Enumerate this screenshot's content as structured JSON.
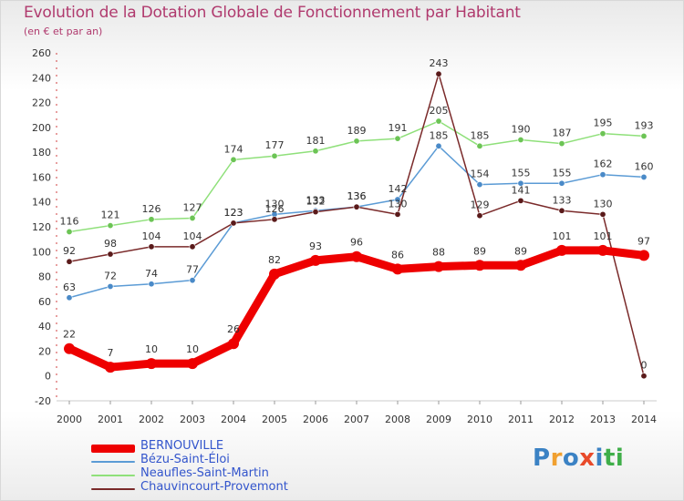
{
  "page": {
    "title": "Evolution de la Dotation Globale de Fonctionnement par Habitant",
    "subtitle": "(en € et par an)"
  },
  "logo": {
    "text": "Proxiti",
    "colors": [
      "#3b82c4",
      "#f0a030",
      "#3b82c4",
      "#e84a2a",
      "#3b82c4",
      "#3fae49",
      "#3fae49"
    ]
  },
  "chart_data": {
    "type": "line",
    "title": "Evolution de la Dotation Globale de Fonctionnement par Habitant",
    "ylabel": "(en € et par an)",
    "xlabel": "",
    "ylim": [
      -20,
      260
    ],
    "yticks": [
      -20,
      0,
      20,
      40,
      60,
      80,
      100,
      120,
      140,
      160,
      180,
      200,
      220,
      240,
      260
    ],
    "grid": false,
    "legend_position": "bottom-left",
    "categories": [
      "2000",
      "2001",
      "2002",
      "2003",
      "2004",
      "2005",
      "2006",
      "2007",
      "2008",
      "2009",
      "2010",
      "2011",
      "2012",
      "2013",
      "2014"
    ],
    "series": [
      {
        "name": "Neaufles-Saint-Martin",
        "color": "#8fe07a",
        "marker": "#6cc455",
        "values": [
          116,
          121,
          126,
          127,
          174,
          177,
          181,
          189,
          191,
          205,
          185,
          190,
          187,
          195,
          193
        ],
        "labels": [
          "116",
          "121",
          "126",
          "127",
          "174",
          "177",
          "181",
          "189",
          "191",
          "205",
          "185",
          "190",
          "187",
          "195",
          "193"
        ]
      },
      {
        "name": "Bézu-Saint-Éloi",
        "color": "#5b9bd5",
        "marker": "#4a8ac8",
        "values": [
          63,
          72,
          74,
          77,
          123,
          130,
          133,
          136,
          142,
          185,
          154,
          155,
          155,
          162,
          160
        ],
        "labels": [
          "63",
          "72",
          "74",
          "77",
          "123",
          "130",
          "133",
          "136",
          "142",
          "185",
          "154",
          "155",
          "155",
          "162",
          "160"
        ]
      },
      {
        "name": "Chauvincourt-Provemont",
        "color": "#7a2a2a",
        "marker": "#5a1a1a",
        "values": [
          92,
          98,
          104,
          104,
          123,
          126,
          132,
          136,
          130,
          243,
          129,
          141,
          133,
          130,
          0
        ],
        "labels": [
          "92",
          "98",
          "104",
          "104",
          "123",
          "126",
          "132",
          "136",
          "130",
          "243",
          "129",
          "141",
          "133",
          "130",
          "0"
        ]
      },
      {
        "name": "BERNOUVILLE",
        "color": "#ee0000",
        "marker": "#ee0000",
        "values": [
          22,
          7,
          10,
          10,
          26,
          82,
          93,
          96,
          86,
          88,
          89,
          89,
          101,
          101,
          97
        ],
        "labels": [
          "22",
          "7",
          "10",
          "10",
          "26",
          "82",
          "93",
          "96",
          "86",
          "88",
          "89",
          "89",
          "101",
          "101",
          "97"
        ]
      }
    ],
    "legend": [
      {
        "name": "BERNOUVILLE",
        "color": "#ee0000",
        "text_color": "#3355cc",
        "thickness": 9
      },
      {
        "name": "Bézu-Saint-Éloi",
        "color": "#5b9bd5",
        "text_color": "#3355cc",
        "thickness": 2
      },
      {
        "name": "Neaufles-Saint-Martin",
        "color": "#8fe07a",
        "text_color": "#3355cc",
        "thickness": 2
      },
      {
        "name": "Chauvincourt-Provemont",
        "color": "#7a2a2a",
        "text_color": "#3355cc",
        "thickness": 2
      }
    ]
  }
}
